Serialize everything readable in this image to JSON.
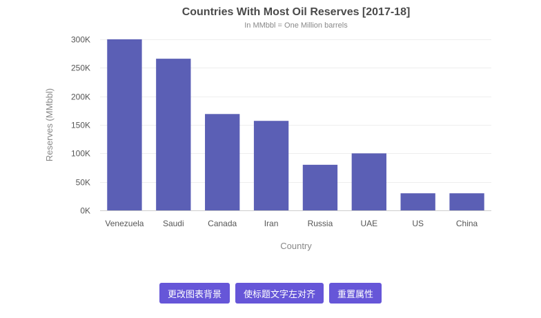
{
  "chart_data": {
    "type": "bar",
    "title": "Countries With Most Oil Reserves [2017-18]",
    "subtitle": "In MMbbl = One Million barrels",
    "xlabel": "Country",
    "ylabel": "Reserves (MMbbl)",
    "categories": [
      "Venezuela",
      "Saudi",
      "Canada",
      "Iran",
      "Russia",
      "UAE",
      "US",
      "China"
    ],
    "values": [
      300000,
      266000,
      169000,
      157000,
      80000,
      100000,
      30000,
      30000
    ],
    "ylim": [
      0,
      300000
    ],
    "yticks": [
      0,
      50000,
      100000,
      150000,
      200000,
      250000,
      300000
    ],
    "ytick_labels": [
      "0K",
      "50K",
      "100K",
      "150K",
      "200K",
      "250K",
      "300K"
    ],
    "bar_color": "#5b5fb5",
    "grid": true,
    "legend": "none"
  },
  "controls": {
    "change_bg_label": "更改图表背景",
    "align_title_left_label": "使标题文字左对齐",
    "reset_label": "重置属性",
    "button_color": "#6656d8"
  }
}
